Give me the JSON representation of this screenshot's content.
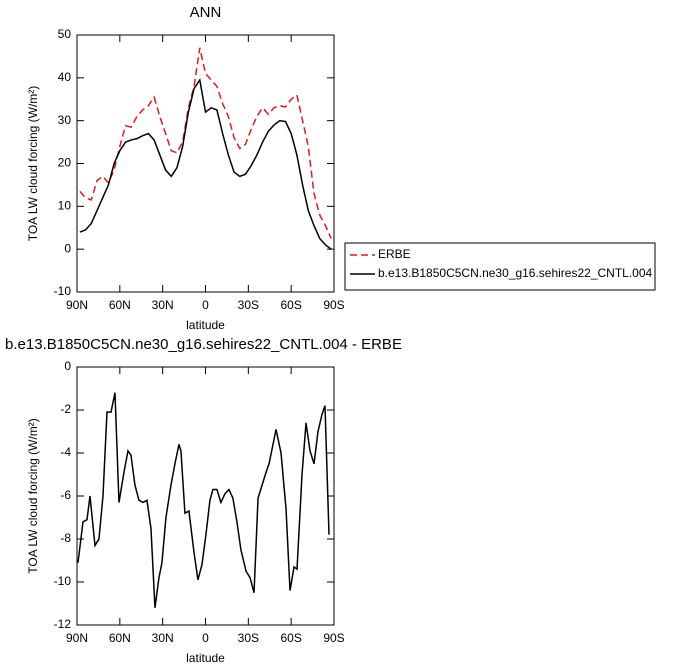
{
  "chart_data": [
    {
      "type": "line",
      "title": "ANN",
      "xlabel": "latitude",
      "ylabel": "TOA LW cloud forcing (W/m²)",
      "x": [
        88,
        84,
        80,
        76,
        72,
        68,
        64,
        60,
        56,
        52,
        48,
        44,
        40,
        36,
        32,
        28,
        24,
        20,
        16,
        12,
        8,
        4,
        0,
        -4,
        -8,
        -12,
        -16,
        -20,
        -24,
        -28,
        -32,
        -36,
        -40,
        -44,
        -48,
        -52,
        -56,
        -60,
        -64,
        -68,
        -72,
        -76,
        -80,
        -84,
        -88
      ],
      "series": [
        {
          "name": "ERBE",
          "color": "#e0191f",
          "linestyle": "dashed",
          "values": [
            13.5,
            12,
            11.5,
            16,
            17,
            15.5,
            18.5,
            24,
            28.8,
            28.5,
            31,
            32.5,
            33.5,
            35.5,
            31,
            27,
            23,
            22.5,
            25,
            33,
            38,
            47,
            41,
            39.5,
            38,
            34,
            31,
            26,
            23.5,
            24.5,
            28,
            31,
            33,
            31.5,
            33,
            33.5,
            33.2,
            35,
            36,
            30,
            24,
            13,
            8,
            5.5,
            2.5
          ]
        },
        {
          "name": "b.e13.B1850C5CN.ne30_g16.sehires22_CNTL.004",
          "color": "#000000",
          "linestyle": "solid",
          "values": [
            4,
            4.5,
            6,
            9,
            12,
            15,
            20,
            23,
            25,
            25.5,
            25.8,
            26.5,
            27,
            25.5,
            22,
            18.5,
            17,
            19,
            24,
            32,
            37.5,
            39.5,
            32,
            33,
            32.5,
            27,
            22,
            18,
            17,
            17.5,
            19.5,
            22,
            25,
            27.5,
            29,
            30,
            29.8,
            27,
            22,
            15,
            9,
            5.5,
            2.5,
            1,
            0
          ]
        }
      ],
      "xlim": [
        90,
        -90
      ],
      "xticks": [
        {
          "value": 90,
          "label": "90N"
        },
        {
          "value": 60,
          "label": "60N"
        },
        {
          "value": 30,
          "label": "30N"
        },
        0,
        {
          "value": -30,
          "label": "30S"
        },
        {
          "value": -60,
          "label": "60S"
        },
        {
          "value": -90,
          "label": "90S"
        }
      ],
      "ylim": [
        -10,
        50
      ],
      "yticks": [
        -10,
        0,
        10,
        20,
        30,
        40,
        50
      ],
      "legend": "right"
    },
    {
      "type": "line",
      "title": "b.e13.B1850C5CN.ne30_g16.sehires22_CNTL.004 - ERBE",
      "xlabel": "latitude",
      "ylabel": "TOA LW cloud forcing (W/m²)",
      "x": [
        89.3,
        85.8,
        83,
        80.9,
        77.4,
        74.6,
        71.8,
        69,
        66.2,
        63.4,
        60.6,
        57.1,
        54.3,
        52.2,
        49.4,
        46.6,
        43.8,
        41,
        38.2,
        35.4,
        32.6,
        30.5,
        27.7,
        24.2,
        21.4,
        18.6,
        17.2,
        14.4,
        11.6,
        8.1,
        5.3,
        2.5,
        -0.3,
        -3.1,
        -5.2,
        -8,
        -10.8,
        -13.6,
        -16.4,
        -19.2,
        -22,
        -24.8,
        -28.4,
        -31.2,
        -34,
        -36.8,
        -39.6,
        -42.4,
        -44.5,
        -47.3,
        -49.4,
        -52.9,
        -56.4,
        -59.2,
        -62,
        -64.1,
        -67.6,
        -70.4,
        -73.2,
        -76,
        -78.8,
        -81.6,
        -83.7,
        -86.5
      ],
      "color": "#000000",
      "values": [
        -9.1,
        -7.2,
        -7.1,
        -6,
        -8.3,
        -8,
        -6,
        -2.1,
        -2.1,
        -1.2,
        -6.3,
        -4.9,
        -3.9,
        -4.1,
        -5.5,
        -6.2,
        -6.3,
        -6.2,
        -7.5,
        -11.2,
        -9.8,
        -9.1,
        -7,
        -5.5,
        -4.5,
        -3.6,
        -3.9,
        -6.8,
        -6.7,
        -8.6,
        -9.9,
        -9.2,
        -7.8,
        -6.2,
        -5.7,
        -5.7,
        -6.3,
        -5.9,
        -5.7,
        -6.1,
        -7.2,
        -8.5,
        -9.5,
        -9.8,
        -10.5,
        -6.1,
        -5.5,
        -4.9,
        -4.5,
        -3.6,
        -2.9,
        -4,
        -6.6,
        -10.4,
        -9.3,
        -9.4,
        -5,
        -2.6,
        -3.9,
        -4.5,
        -3,
        -2.2,
        -1.8,
        -7.8
      ],
      "xlim": [
        90,
        -90
      ],
      "xticks": [
        {
          "value": 90,
          "label": "90N"
        },
        {
          "value": 60,
          "label": "60N"
        },
        {
          "value": 30,
          "label": "30N"
        },
        0,
        {
          "value": -30,
          "label": "30S"
        },
        {
          "value": -60,
          "label": "60S"
        },
        {
          "value": -90,
          "label": "90S"
        }
      ],
      "ylim": [
        -12,
        0
      ],
      "yticks": [
        -12,
        -10,
        -8,
        -6,
        -4,
        -2,
        0
      ]
    }
  ]
}
